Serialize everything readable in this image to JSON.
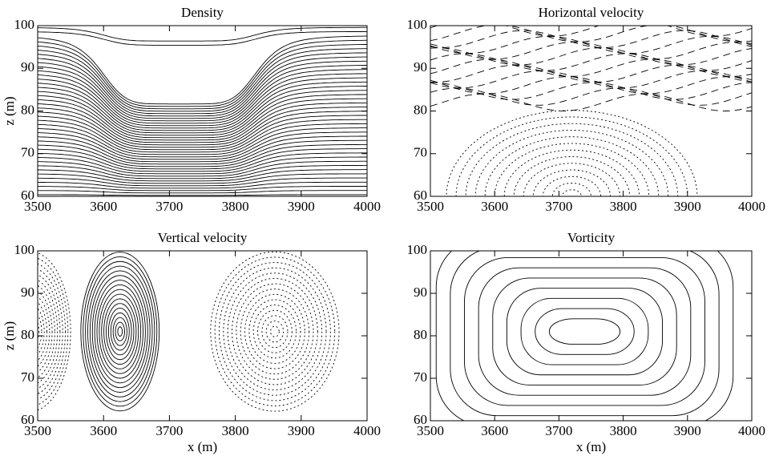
{
  "chart_data": [
    {
      "type": "contour",
      "title": "Density",
      "ylabel": "z (m)",
      "xlim": [
        3500,
        4000
      ],
      "ylim": [
        60,
        100
      ],
      "xticks": [
        3500,
        3600,
        3700,
        3800,
        3900,
        4000
      ],
      "yticks": [
        60,
        70,
        80,
        90,
        100
      ]
    },
    {
      "type": "contour",
      "title": "Horizontal velocity",
      "xlim": [
        3500,
        4000
      ],
      "ylim": [
        60,
        100
      ],
      "xticks": [
        3500,
        3600,
        3700,
        3800,
        3900,
        4000
      ],
      "yticks": [
        60,
        70,
        80,
        90,
        100
      ]
    },
    {
      "type": "contour",
      "title": "Vertical velocity",
      "xlabel": "x (m)",
      "ylabel": "z (m)",
      "xlim": [
        3500,
        4000
      ],
      "ylim": [
        60,
        100
      ],
      "xticks": [
        3500,
        3600,
        3700,
        3800,
        3900,
        4000
      ],
      "yticks": [
        60,
        70,
        80,
        90,
        100
      ]
    },
    {
      "type": "contour",
      "title": "Vorticity",
      "xlabel": "x (m)",
      "xlim": [
        3500,
        4000
      ],
      "ylim": [
        60,
        100
      ],
      "xticks": [
        3500,
        3600,
        3700,
        3800,
        3900,
        4000
      ],
      "yticks": [
        60,
        70,
        80,
        90,
        100
      ]
    }
  ]
}
